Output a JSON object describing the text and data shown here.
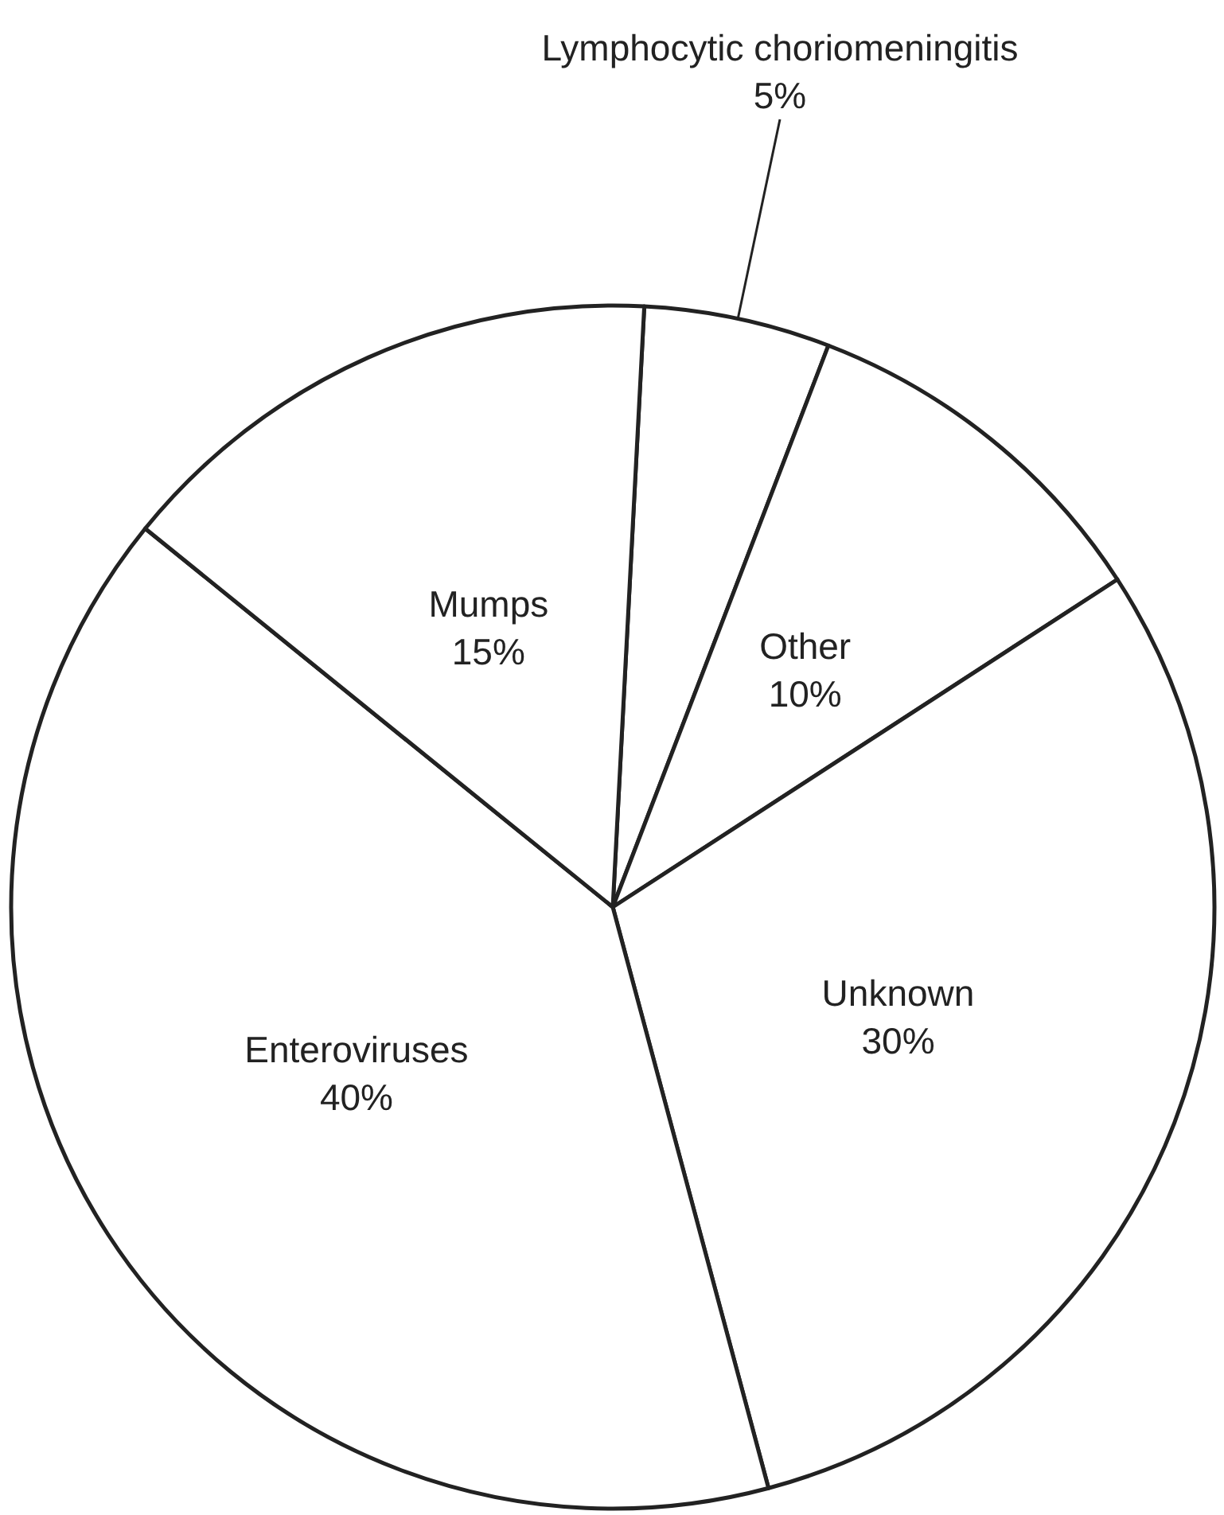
{
  "chart_data": {
    "type": "pie",
    "categories": [
      "Lymphocytic choriomeningitis",
      "Other",
      "Unknown",
      "Enteroviruses",
      "Mumps"
    ],
    "values": [
      5,
      10,
      30,
      40,
      15
    ],
    "value_labels": [
      "5%",
      "10%",
      "30%",
      "40%",
      "15%"
    ],
    "colors": [
      "#ffffff",
      "#ffffff",
      "#ffffff",
      "#ffffff",
      "#ffffff"
    ],
    "legend": false
  }
}
